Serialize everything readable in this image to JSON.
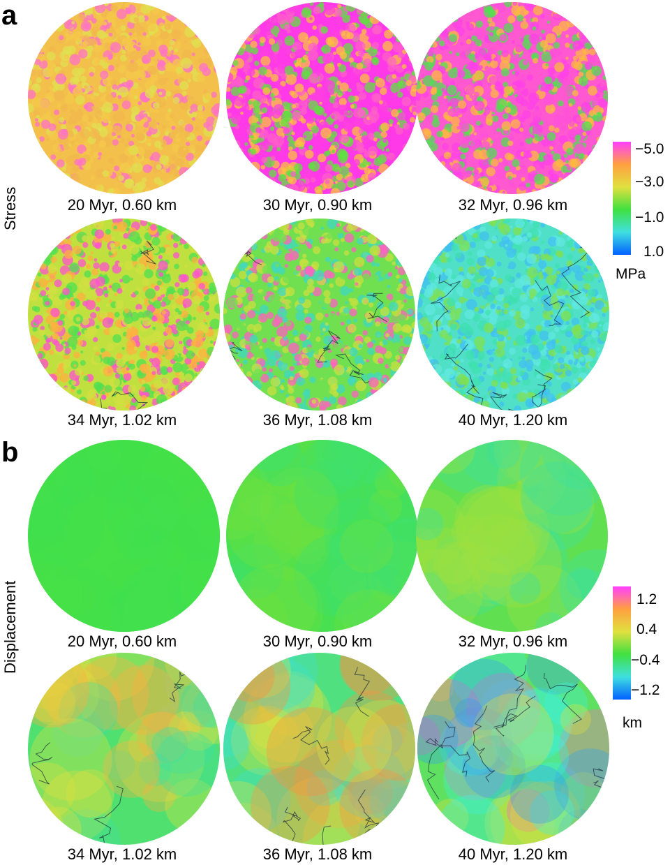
{
  "panels": [
    {
      "letter": "a",
      "row_label": "Stress",
      "globes": [
        {
          "caption": "20 Myr, 0.60 km",
          "palette": [
            "#f4c84a",
            "#f2b84e",
            "#e0e050",
            "#ff70c8"
          ],
          "base": "#f3c04c"
        },
        {
          "caption": "30 Myr, 0.90 km",
          "palette": [
            "#ff40e0",
            "#ff60c8",
            "#ffc040",
            "#60e040"
          ],
          "base": "#ff38e8"
        },
        {
          "caption": "32 Myr, 0.96 km",
          "palette": [
            "#ff50d8",
            "#ffb840",
            "#50e050",
            "#ff40e8"
          ],
          "base": "#ff58d0"
        },
        {
          "caption": "34 Myr, 1.02 km",
          "palette": [
            "#ff50d0",
            "#d0e040",
            "#50e050",
            "#ffb040"
          ],
          "base": "#c0e040"
        },
        {
          "caption": "36 Myr, 1.08 km",
          "palette": [
            "#70e050",
            "#c8e040",
            "#40d8c0",
            "#ff60c0"
          ],
          "base": "#70e050"
        },
        {
          "caption": "40 Myr, 1.20 km",
          "palette": [
            "#40e0b0",
            "#60e8e0",
            "#80e050",
            "#40c0f0"
          ],
          "base": "#50e0c8"
        }
      ],
      "colorbar": {
        "ticks": [
          "−5.0",
          "−3.0",
          "−1.0",
          "1.0"
        ],
        "unit": "MPa",
        "colors": [
          "#ff40ff",
          "#ffa040",
          "#e0e040",
          "#40e040",
          "#40e0e0",
          "#0060ff"
        ]
      }
    },
    {
      "letter": "b",
      "row_label": "Displacement",
      "globes": [
        {
          "caption": "20 Myr, 0.60 km",
          "palette": [
            "#40e050",
            "#48e048"
          ],
          "base": "#42e048"
        },
        {
          "caption": "30 Myr, 0.90 km",
          "palette": [
            "#40e070",
            "#70e040"
          ],
          "base": "#48e050"
        },
        {
          "caption": "32 Myr, 0.96 km",
          "palette": [
            "#40e0a0",
            "#a0e040"
          ],
          "base": "#60e050"
        },
        {
          "caption": "34 Myr, 1.02 km",
          "palette": [
            "#40e0a0",
            "#e0e040",
            "#ffb040"
          ],
          "base": "#50e070"
        },
        {
          "caption": "36 Myr, 1.08 km",
          "palette": [
            "#40e0d0",
            "#e0e040",
            "#ff9040"
          ],
          "base": "#50e080"
        },
        {
          "caption": "40 Myr, 1.20 km",
          "palette": [
            "#30a0f0",
            "#40f0e0",
            "#e0e040",
            "#ff60c0"
          ],
          "base": "#60e060"
        }
      ],
      "colorbar": {
        "ticks": [
          "1.2",
          "0.4",
          "−0.4",
          "−1.2"
        ],
        "unit": "km",
        "colors": [
          "#ff40ff",
          "#ffa040",
          "#e0e040",
          "#40e040",
          "#40e0e0",
          "#0060ff"
        ]
      }
    }
  ]
}
